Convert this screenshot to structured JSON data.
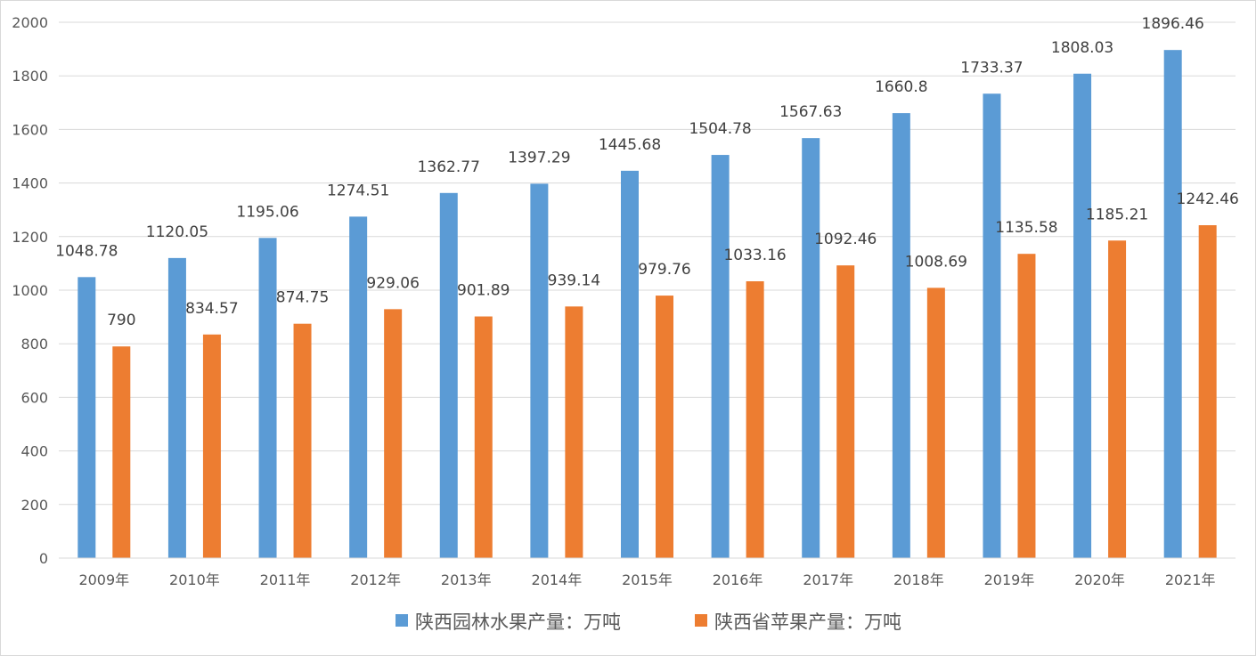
{
  "chart_data": {
    "type": "bar",
    "categories": [
      "2009年",
      "2010年",
      "2011年",
      "2012年",
      "2013年",
      "2014年",
      "2015年",
      "2016年",
      "2017年",
      "2018年",
      "2019年",
      "2020年",
      "2021年"
    ],
    "series": [
      {
        "name": "陕西园林水果产量：万吨",
        "color": "#5b9bd5",
        "values": [
          1048.78,
          1120.05,
          1195.06,
          1274.51,
          1362.77,
          1397.29,
          1445.68,
          1504.78,
          1567.63,
          1660.8,
          1733.37,
          1808.03,
          1896.46
        ],
        "labels": [
          "1048.78",
          "1120.05",
          "1195.06",
          "1274.51",
          "1362.77",
          "1397.29",
          "1445.68",
          "1504.78",
          "1567.63",
          "1660.8",
          "1733.37",
          "1808.03",
          "1896.46"
        ]
      },
      {
        "name": "陕西省苹果产量：万吨",
        "color": "#ed7d31",
        "values": [
          790,
          834.57,
          874.75,
          929.06,
          901.89,
          939.14,
          979.76,
          1033.16,
          1092.46,
          1008.69,
          1135.58,
          1185.21,
          1242.46
        ],
        "labels": [
          "790",
          "834.57",
          "874.75",
          "929.06",
          "901.89",
          "939.14",
          "979.76",
          "1033.16",
          "1092.46",
          "1008.69",
          "1135.58",
          "1185.21",
          "1242.46"
        ]
      }
    ],
    "yticks": [
      "0",
      "200",
      "400",
      "600",
      "800",
      "1000",
      "1200",
      "1400",
      "1600",
      "1800",
      "2000"
    ],
    "ylim": [
      0,
      2000
    ],
    "grid": true,
    "gridColor": "#d9d9d9",
    "legend": "bottom-center",
    "title": "",
    "xlabel": "",
    "ylabel": ""
  }
}
